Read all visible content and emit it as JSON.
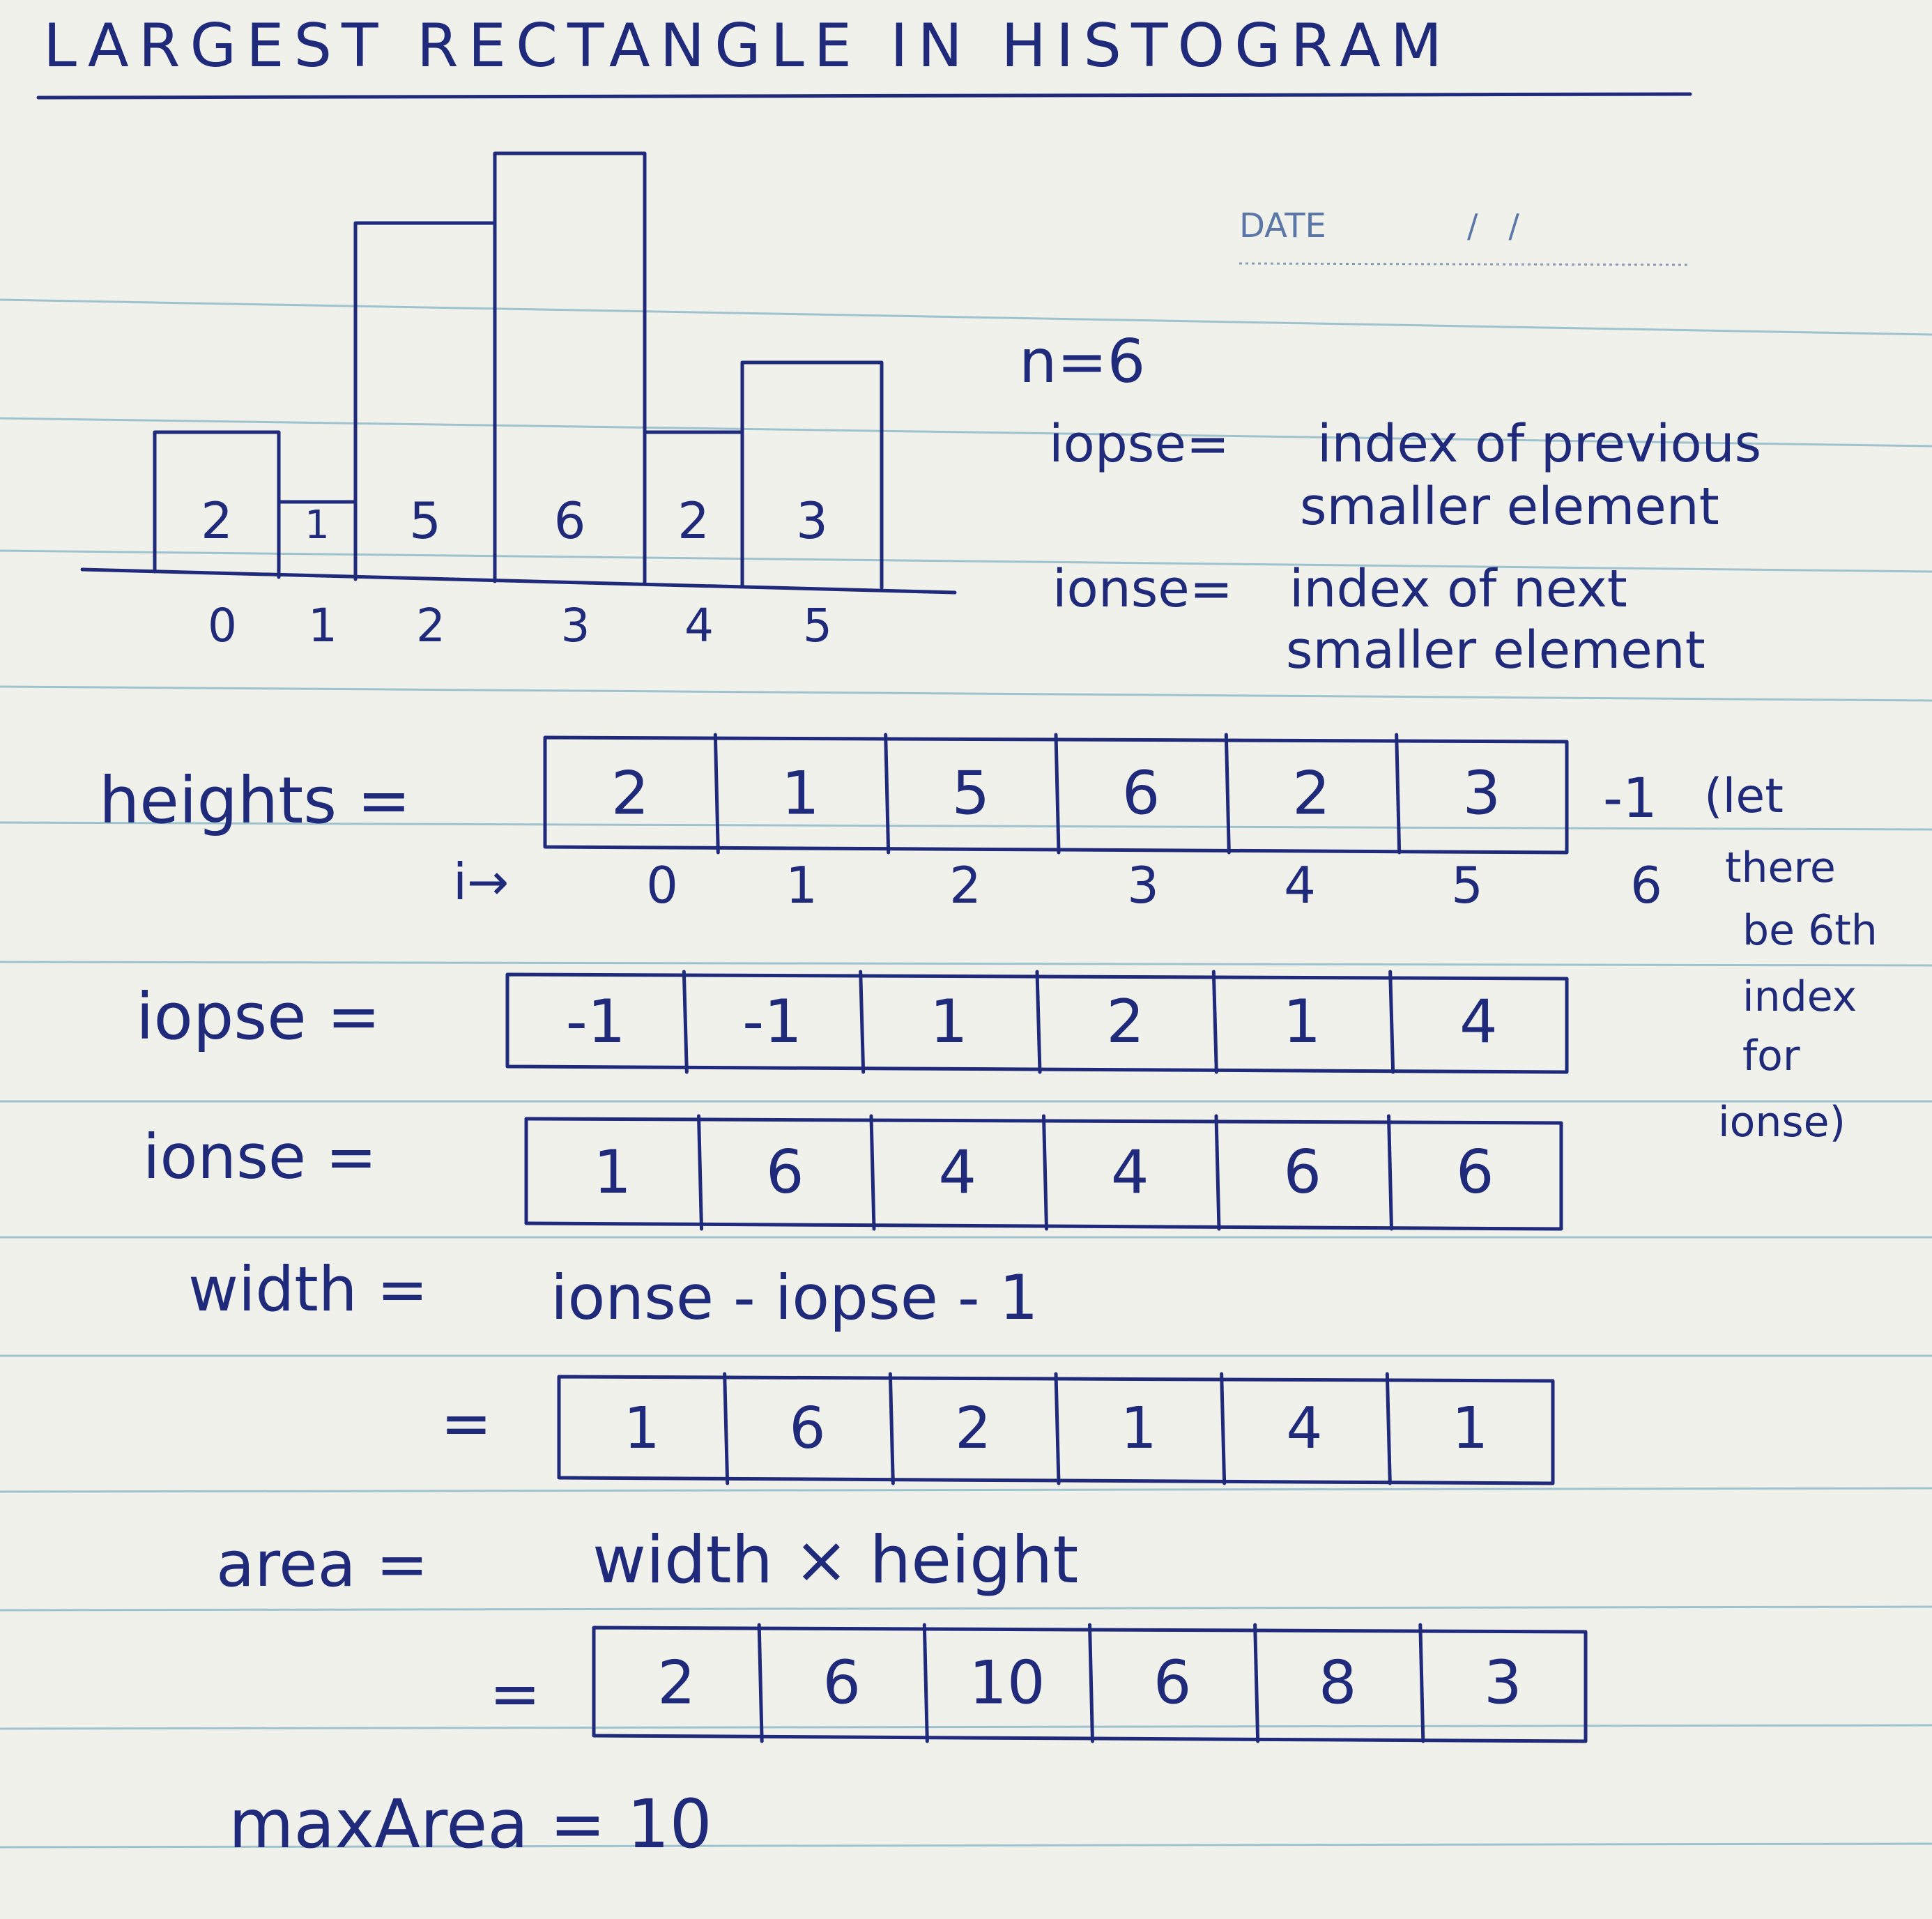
{
  "page": {
    "title": "LARGEST RECTANGLE IN HISTOGRAM",
    "date_label": "DATE",
    "date_value": "/   /"
  },
  "histogram": {
    "n_label": "n=6",
    "indices": [
      "0",
      "1",
      "2",
      "3",
      "4",
      "5"
    ],
    "bar_labels": [
      "2",
      "1",
      "5",
      "6",
      "2",
      "3"
    ]
  },
  "chart_data": {
    "type": "bar",
    "title": "",
    "categories": [
      "0",
      "1",
      "2",
      "3",
      "4",
      "5"
    ],
    "values": [
      2,
      1,
      5,
      6,
      2,
      3
    ],
    "xlabel": "",
    "ylabel": "",
    "ylim": [
      0,
      6
    ],
    "grid": false
  },
  "definitions": {
    "iopse_term": "iopse=",
    "iopse_line1": "index of previous",
    "iopse_line2": "smaller element",
    "ionse_term": "ionse=",
    "ionse_line1": "index of next",
    "ionse_line2": "smaller element"
  },
  "arrays": {
    "heights": {
      "label": "heights =",
      "values": [
        "2",
        "1",
        "5",
        "6",
        "2",
        "3"
      ],
      "sentinel": "-1"
    },
    "index_row": {
      "label": "i→",
      "values": [
        "0",
        "1",
        "2",
        "3",
        "4",
        "5"
      ],
      "extra": "6"
    },
    "iopse": {
      "label": "iopse =",
      "values": [
        "-1",
        "-1",
        "1",
        "2",
        "1",
        "4"
      ]
    },
    "ionse": {
      "label": "ionse =",
      "values": [
        "1",
        "6",
        "4",
        "4",
        "6",
        "6"
      ]
    },
    "width": {
      "label": "width =",
      "formula": "ionse - iopse - 1",
      "eq": "=",
      "values": [
        "1",
        "6",
        "2",
        "1",
        "4",
        "1"
      ]
    },
    "area": {
      "label": "area =",
      "formula": "width × height",
      "eq": "=",
      "values": [
        "2",
        "6",
        "10",
        "6",
        "8",
        "3"
      ]
    }
  },
  "side_note": {
    "lines": [
      "(let",
      "there",
      "be 6th",
      "index",
      "for",
      "ionse)"
    ]
  },
  "result": {
    "text": "maxArea = 10"
  }
}
